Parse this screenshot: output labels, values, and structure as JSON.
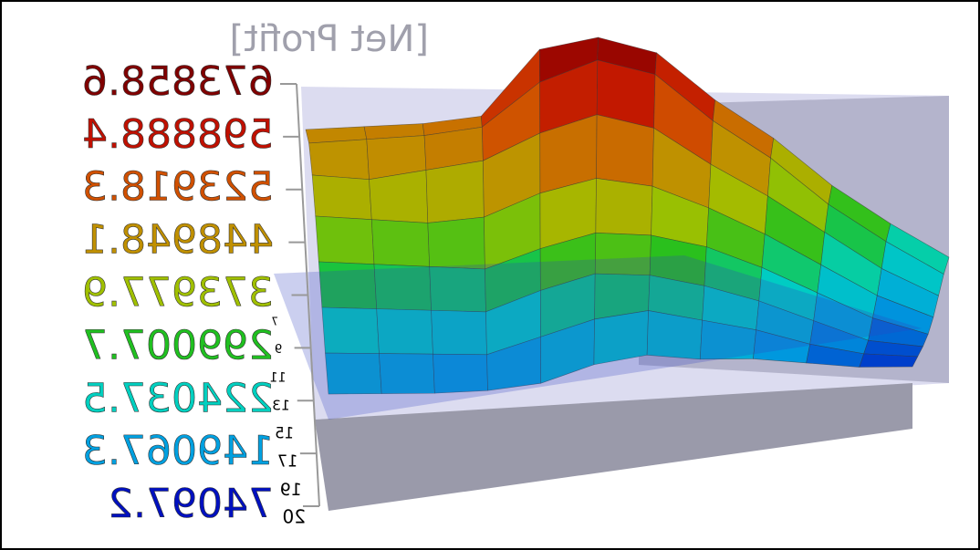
{
  "chart_data": {
    "type": "surface",
    "title": "[Net Profit]",
    "y_categories": [
      "20",
      "19",
      "17",
      "15",
      "13",
      "11",
      "9",
      "7"
    ],
    "zlim": [
      74097.2,
      673858.6
    ],
    "zticks": [
      74097.2,
      149067.3,
      224037.5,
      299007.7,
      373977.9,
      448948.1,
      523918.3,
      598888.4,
      673858.6
    ],
    "colormap": [
      "#0010c0",
      "#00a0e0",
      "#00d0c0",
      "#20c020",
      "#a0c000",
      "#c09000",
      "#d05000",
      "#c01000",
      "#800000"
    ],
    "z": [
      [
        150000,
        140000,
        130000,
        125000,
        130000,
        160000,
        170000,
        150000,
        140000,
        120000,
        100000,
        90000
      ],
      [
        200000,
        190000,
        180000,
        170000,
        200000,
        230000,
        240000,
        210000,
        180000,
        140000,
        110000,
        95000
      ],
      [
        260000,
        250000,
        240000,
        230000,
        270000,
        300000,
        290000,
        260000,
        220000,
        170000,
        120000,
        100000
      ],
      [
        320000,
        310000,
        300000,
        290000,
        330000,
        360000,
        350000,
        320000,
        270000,
        210000,
        150000,
        110000
      ],
      [
        380000,
        370000,
        360000,
        370000,
        420000,
        450000,
        430000,
        380000,
        320000,
        250000,
        180000,
        130000
      ],
      [
        430000,
        420000,
        440000,
        460000,
        520000,
        560000,
        530000,
        450000,
        380000,
        300000,
        220000,
        160000
      ],
      [
        460000,
        470000,
        480000,
        500000,
        600000,
        650000,
        620000,
        520000,
        440000,
        340000,
        260000,
        190000
      ],
      [
        450000,
        460000,
        470000,
        490000,
        640000,
        670000,
        640000,
        540000,
        460000,
        360000,
        280000,
        210000
      ]
    ]
  }
}
